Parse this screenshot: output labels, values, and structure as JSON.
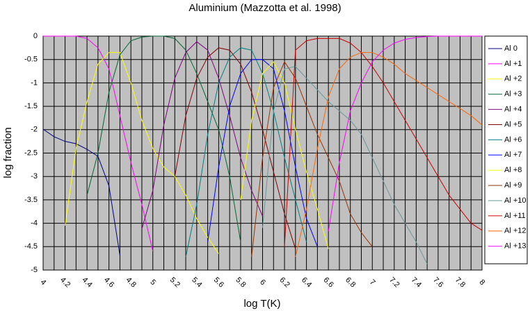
{
  "chart_data": {
    "type": "line",
    "title": "Aluminium (Mazzotta et al. 1998)",
    "xlabel": "log T(K)",
    "ylabel": "log fraction",
    "x": [
      4.0,
      4.1,
      4.2,
      4.3,
      4.4,
      4.5,
      4.6,
      4.7,
      4.8,
      4.9,
      5.0,
      5.1,
      5.2,
      5.3,
      5.4,
      5.5,
      5.6,
      5.7,
      5.8,
      5.9,
      6.0,
      6.1,
      6.2,
      6.3,
      6.4,
      6.5,
      6.6,
      6.7,
      6.8,
      6.9,
      7.0,
      7.1,
      7.2,
      7.3,
      7.4,
      7.5,
      7.6,
      7.7,
      7.8,
      7.9,
      8.0
    ],
    "xlim": [
      4,
      8
    ],
    "xticks": [
      4,
      4.2,
      4.4,
      4.6,
      4.8,
      5,
      5.2,
      5.4,
      5.6,
      5.8,
      6,
      6.2,
      6.4,
      6.6,
      6.8,
      7,
      7.2,
      7.4,
      7.6,
      7.8,
      8
    ],
    "xminorticks": [
      4.1,
      4.3,
      4.5,
      4.7,
      4.9,
      5.1,
      5.3,
      5.5,
      5.7,
      5.9,
      6.1,
      6.3,
      6.5,
      6.7,
      6.9,
      7.1,
      7.3,
      7.5,
      7.7,
      7.9
    ],
    "ylim": [
      -5,
      0
    ],
    "yticks": [
      0,
      -0.5,
      -1,
      -1.5,
      -2,
      -2.5,
      -3,
      -3.5,
      -4,
      -4.5,
      -5
    ],
    "grid": true,
    "legend": "right",
    "series": [
      {
        "name": "Al 0",
        "color": "#000080",
        "values": [
          -1.99,
          -2.15,
          -2.25,
          -2.3,
          -2.42,
          -2.57,
          -3.2,
          -4.69,
          null,
          null,
          null,
          null,
          null,
          null,
          null,
          null,
          null,
          null,
          null,
          null,
          null,
          null,
          null,
          null,
          null,
          null,
          null,
          null,
          null,
          null,
          null,
          null,
          null,
          null,
          null,
          null,
          null,
          null,
          null,
          null,
          null
        ]
      },
      {
        "name": "Al +1",
        "color": "#ff00ff",
        "values": [
          0,
          0,
          0,
          0,
          -0.05,
          -0.25,
          -0.7,
          -1.7,
          -2.7,
          -3.6,
          -4.6,
          null,
          null,
          null,
          null,
          null,
          null,
          null,
          null,
          null,
          null,
          null,
          null,
          null,
          null,
          null,
          null,
          null,
          null,
          null,
          null,
          null,
          null,
          null,
          null,
          null,
          null,
          null,
          null,
          null,
          null
        ]
      },
      {
        "name": "Al +2",
        "color": "#ffff00",
        "values": [
          null,
          null,
          -4.05,
          -2.4,
          -1.4,
          -0.6,
          -0.35,
          -0.35,
          -1.0,
          -1.8,
          -2.4,
          -2.8,
          -3.0,
          -3.4,
          -3.9,
          -4.3,
          -4.65,
          null,
          null,
          null,
          null,
          null,
          null,
          null,
          null,
          null,
          null,
          null,
          null,
          null,
          null,
          null,
          null,
          null,
          null,
          null,
          null,
          null,
          null,
          null,
          null
        ]
      },
      {
        "name": "Al +3",
        "color": "#006633",
        "values": [
          null,
          null,
          null,
          null,
          -3.4,
          -2.5,
          -1.2,
          -0.4,
          -0.1,
          -0.02,
          0,
          0,
          -0.05,
          -0.3,
          -0.8,
          -1.4,
          -2.0,
          -3.0,
          -4.4,
          null,
          null,
          null,
          null,
          null,
          null,
          null,
          null,
          null,
          null,
          null,
          null,
          null,
          null,
          null,
          null,
          null,
          null,
          null,
          null,
          null,
          null
        ]
      },
      {
        "name": "Al +4",
        "color": "#800080",
        "values": [
          null,
          null,
          null,
          null,
          null,
          null,
          null,
          null,
          null,
          -4.12,
          -3.3,
          -1.9,
          -0.9,
          -0.35,
          -0.12,
          -0.3,
          -0.9,
          -1.7,
          -2.6,
          -3.3,
          -3.85,
          null,
          null,
          null,
          null,
          null,
          null,
          null,
          null,
          null,
          null,
          null,
          null,
          null,
          null,
          null,
          null,
          null,
          null,
          null,
          null
        ]
      },
      {
        "name": "Al +5",
        "color": "#800000",
        "values": [
          null,
          null,
          null,
          null,
          null,
          null,
          null,
          null,
          null,
          null,
          null,
          null,
          -3.0,
          -1.7,
          -0.9,
          -0.45,
          -0.25,
          -0.3,
          -0.6,
          -1.2,
          -2.0,
          -2.9,
          -3.8,
          -4.55,
          null,
          null,
          null,
          null,
          null,
          null,
          null,
          null,
          null,
          null,
          null,
          null,
          null,
          null,
          null,
          null,
          null
        ]
      },
      {
        "name": "Al +6",
        "color": "#008080",
        "values": [
          null,
          null,
          null,
          null,
          null,
          null,
          null,
          null,
          null,
          null,
          null,
          null,
          null,
          -4.72,
          -3.6,
          -2.1,
          -1.0,
          -0.45,
          -0.25,
          -0.3,
          -0.8,
          -1.6,
          -2.6,
          -3.5,
          -4.4,
          null,
          null,
          null,
          null,
          null,
          null,
          null,
          null,
          null,
          null,
          null,
          null,
          null,
          null,
          null,
          null
        ]
      },
      {
        "name": "Al +7",
        "color": "#0000ff",
        "values": [
          null,
          null,
          null,
          null,
          null,
          null,
          null,
          null,
          null,
          null,
          null,
          null,
          null,
          null,
          null,
          -4.4,
          -2.8,
          -1.5,
          -0.8,
          -0.5,
          -0.5,
          -0.7,
          -1.6,
          -2.8,
          -3.9,
          -4.5,
          null,
          null,
          null,
          null,
          null,
          null,
          null,
          null,
          null,
          null,
          null,
          null,
          null,
          null,
          null
        ]
      },
      {
        "name": "Al +8",
        "color": "#ffff00",
        "values": [
          null,
          null,
          null,
          null,
          null,
          null,
          null,
          null,
          null,
          null,
          null,
          null,
          null,
          null,
          null,
          null,
          null,
          null,
          -3.5,
          -1.8,
          -0.8,
          -0.55,
          -1.0,
          -2.0,
          -2.9,
          -3.7,
          -4.55,
          null,
          null,
          null,
          null,
          null,
          null,
          null,
          null,
          null,
          null,
          null,
          null,
          null,
          null
        ]
      },
      {
        "name": "Al +9",
        "color": "#993300",
        "values": [
          null,
          null,
          null,
          null,
          null,
          null,
          null,
          null,
          null,
          null,
          null,
          null,
          null,
          null,
          null,
          null,
          null,
          null,
          null,
          -4.72,
          -2.6,
          -1.1,
          -0.55,
          -0.9,
          -1.5,
          -2.1,
          -2.6,
          -3.1,
          -3.8,
          -4.2,
          -4.5,
          null,
          null,
          null,
          null,
          null,
          null,
          null,
          null,
          null,
          null
        ]
      },
      {
        "name": "Al +10",
        "color": "#669999",
        "values": [
          null,
          null,
          null,
          null,
          null,
          null,
          null,
          null,
          null,
          null,
          null,
          null,
          null,
          null,
          null,
          null,
          null,
          null,
          null,
          null,
          -4.1,
          -1.6,
          -0.7,
          -0.65,
          -0.9,
          -1.15,
          -1.4,
          -1.6,
          -1.8,
          -2.1,
          -2.6,
          -3.1,
          -3.6,
          -4.0,
          -4.4,
          -4.87,
          null,
          null,
          null,
          null,
          null
        ]
      },
      {
        "name": "Al +11",
        "color": "#cc0000",
        "values": [
          null,
          null,
          null,
          null,
          null,
          null,
          null,
          null,
          null,
          null,
          null,
          null,
          null,
          null,
          null,
          null,
          null,
          null,
          null,
          null,
          null,
          null,
          -4.5,
          -0.3,
          -0.1,
          -0.05,
          -0.05,
          -0.05,
          -0.15,
          -0.35,
          -0.65,
          -1.0,
          -1.4,
          -1.8,
          -2.2,
          -2.6,
          -3.0,
          -3.4,
          -3.7,
          -4.0,
          -4.15
        ]
      },
      {
        "name": "Al +12",
        "color": "#ff6600",
        "values": [
          null,
          null,
          null,
          null,
          null,
          null,
          null,
          null,
          null,
          null,
          null,
          null,
          null,
          null,
          null,
          null,
          null,
          null,
          null,
          null,
          null,
          null,
          null,
          -4.72,
          -3.7,
          -2.4,
          -1.3,
          -0.7,
          -0.45,
          -0.35,
          -0.35,
          -0.45,
          -0.6,
          -0.8,
          -0.95,
          -1.1,
          -1.25,
          -1.4,
          -1.55,
          -1.7,
          -1.9
        ]
      },
      {
        "name": "Al +13",
        "color": "#ff00ff",
        "values": [
          null,
          null,
          null,
          null,
          null,
          null,
          null,
          null,
          null,
          null,
          null,
          null,
          null,
          null,
          null,
          null,
          null,
          null,
          null,
          null,
          null,
          null,
          null,
          null,
          null,
          null,
          -4.17,
          -2.7,
          -1.6,
          -1.0,
          -0.55,
          -0.3,
          -0.15,
          -0.07,
          -0.03,
          -0.01,
          0,
          0,
          0,
          0,
          0
        ]
      }
    ]
  }
}
